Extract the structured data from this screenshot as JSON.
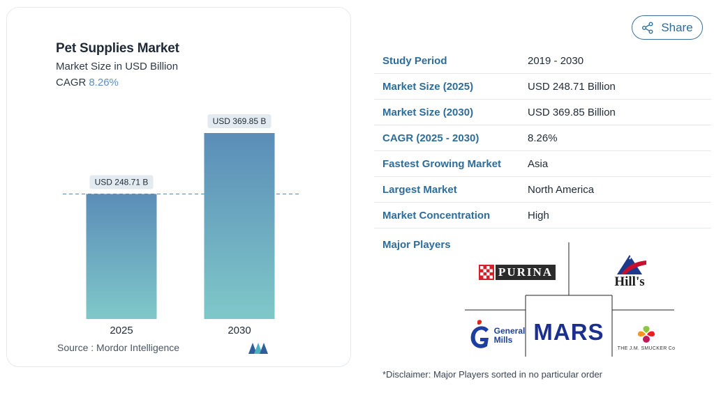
{
  "chart": {
    "title": "Pet Supplies Market",
    "subtitle": "Market Size in USD Billion",
    "cagr_label": "CAGR",
    "cagr_value": "8.26%",
    "source": "Source :  Mordor Intelligence"
  },
  "chart_data": {
    "type": "bar",
    "title": "Pet Supplies Market",
    "subtitle": "Market Size in USD Billion",
    "categories": [
      "2025",
      "2030"
    ],
    "values": [
      248.71,
      369.85
    ],
    "data_labels": [
      "USD 248.71 B",
      "USD 369.85 B"
    ],
    "ylim": [
      0,
      369.85
    ],
    "reference_line": 248.71,
    "grid": false,
    "legend": "none",
    "bar_color_top": "#5b8db8",
    "bar_color_bottom": "#7fc8c9"
  },
  "share": {
    "label": "Share"
  },
  "info": [
    {
      "label": "Study Period",
      "value": "2019 - 2030"
    },
    {
      "label": "Market Size (2025)",
      "value": "USD 248.71 Billion"
    },
    {
      "label": "Market Size (2030)",
      "value": "USD 369.85 Billion"
    },
    {
      "label": "CAGR (2025 - 2030)",
      "value": "8.26%"
    },
    {
      "label": "Fastest Growing Market",
      "value": "Asia"
    },
    {
      "label": "Largest Market",
      "value": "North America"
    },
    {
      "label": "Market Concentration",
      "value": "High"
    }
  ],
  "players": {
    "title": "Major Players",
    "logos": {
      "purina": "PURINA",
      "hills": "Hill's",
      "general_mills_1": "General",
      "general_mills_2": "Mills",
      "mars": "MARS",
      "smucker": "THE J.M. SMUCKER Co"
    }
  },
  "disclaimer": "*Disclaimer: Major Players sorted in no particular order",
  "colors": {
    "accent": "#2e6c9a",
    "cagr": "#5b8fbf",
    "mars": "#1b2f8f"
  }
}
